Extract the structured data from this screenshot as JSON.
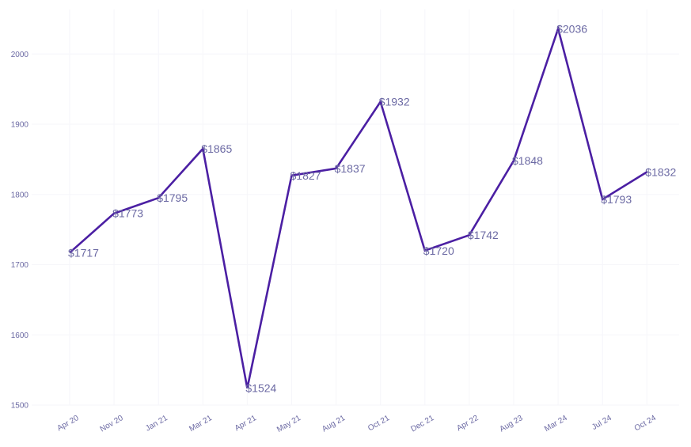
{
  "chart_data": {
    "type": "line",
    "title": "",
    "xlabel": "",
    "ylabel": "",
    "categories": [
      "Apr 20",
      "Nov 20",
      "Jan 21",
      "Mar 21",
      "Apr 21",
      "May 21",
      "Aug 21",
      "Oct 21",
      "Dec 21",
      "Apr 22",
      "Aug 23",
      "Mar 24",
      "Jul 24",
      "Oct 24"
    ],
    "values": [
      1717,
      1773,
      1795,
      1865,
      1524,
      1827,
      1837,
      1932,
      1720,
      1742,
      1848,
      2036,
      1793,
      1832
    ],
    "data_labels": [
      "$1717",
      "$1773",
      "$1795",
      "$1865",
      "$1524",
      "$1827",
      "$1837",
      "$1932",
      "$1720",
      "$1742",
      "$1848",
      "$2036",
      "$1793",
      "$1832"
    ],
    "yticks": [
      1500,
      1600,
      1700,
      1800,
      1900,
      2000
    ],
    "ylim": [
      1500,
      2050
    ],
    "grid": true,
    "line_color": "#4b1fa3",
    "label_color": "#6b69a3"
  }
}
